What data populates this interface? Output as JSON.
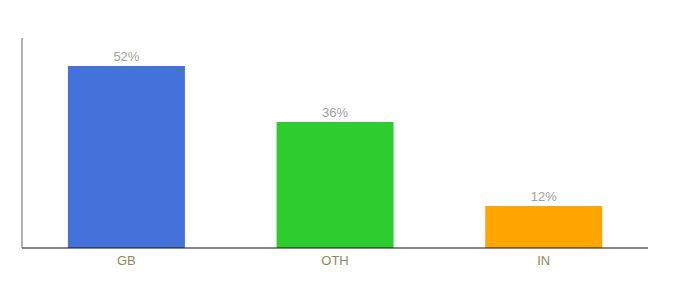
{
  "chart_data": {
    "type": "bar",
    "categories": [
      "GB",
      "OTH",
      "IN"
    ],
    "values": [
      52,
      36,
      12
    ],
    "value_labels": [
      "52%",
      "36%",
      "12%"
    ],
    "colors": [
      "#4472db",
      "#2ecc2e",
      "#ffa500"
    ],
    "ylim": [
      0,
      60
    ],
    "data_labels": true,
    "tick_labels": "x"
  }
}
